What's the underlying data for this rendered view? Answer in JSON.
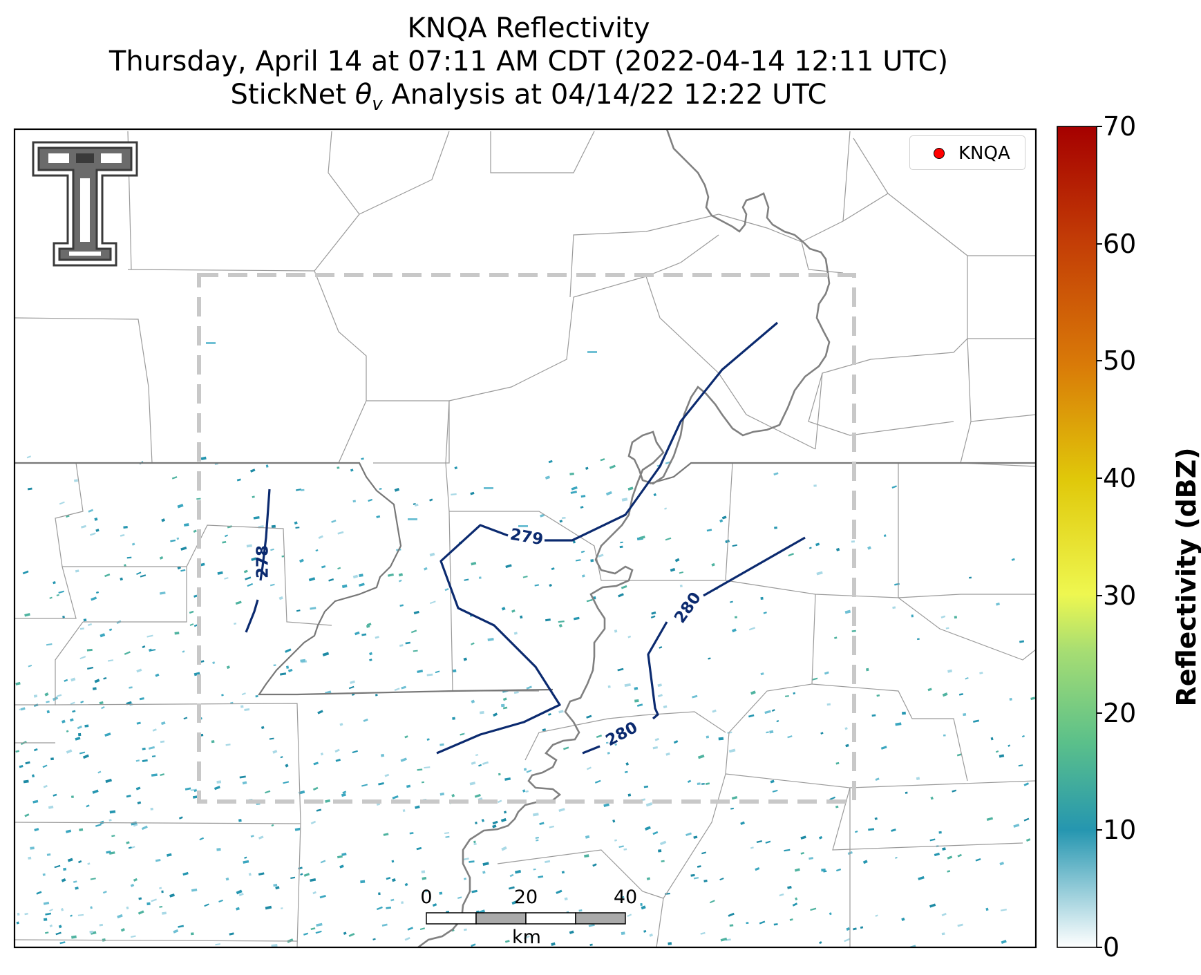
{
  "title": {
    "line1": "KNQA Reflectivity",
    "line2": "Thursday, April 14 at 07:11 AM CDT (2022-04-14 12:11 UTC)",
    "line3": "StickNet θv Analysis at 04/14/22 12:22 UTC"
  },
  "legend": {
    "label": "KNQA",
    "marker_color": "#ff0000"
  },
  "colorbar": {
    "label": "Reflectivity (dBZ)",
    "ticks": [
      "0",
      "10",
      "20",
      "30",
      "40",
      "50",
      "60",
      "70"
    ],
    "range": [
      0,
      70
    ],
    "colors": [
      "#ffffff",
      "#2596b0",
      "#5bc08a",
      "#a6dd73",
      "#eef750",
      "#e0c80a",
      "#d97a08",
      "#c33d06",
      "#a50000"
    ]
  },
  "contours": {
    "color": "#0b2a6f",
    "labels": [
      "278",
      "279",
      "280",
      "280"
    ]
  },
  "scalebar": {
    "ticks": [
      "0",
      "20",
      "40"
    ],
    "unit": "km"
  },
  "analysis_box": {
    "style": "dashed",
    "color": "#c8c8c8"
  },
  "logo": {
    "text": "T",
    "color": "#555555"
  }
}
